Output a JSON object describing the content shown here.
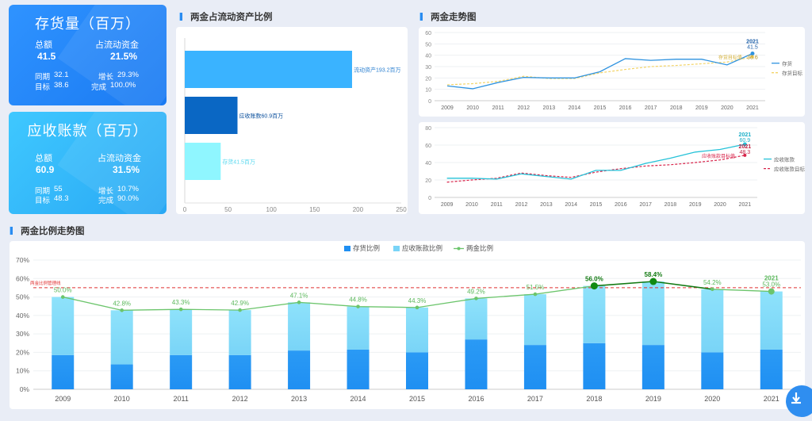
{
  "cards": [
    {
      "title": "存货量（百万）",
      "total_label": "总额",
      "total_value": "41.5",
      "ratio_label": "占流动资金",
      "ratio_value": "21.5%",
      "yoy_label": "同期",
      "yoy_value": "32.1",
      "growth_label": "增长",
      "growth_value": "29.3%",
      "target_label": "目标",
      "target_value": "38.6",
      "done_label": "完成",
      "done_value": "100.0%"
    },
    {
      "title": "应收账款（百万）",
      "total_label": "总额",
      "total_value": "60.9",
      "ratio_label": "占流动资金",
      "ratio_value": "31.5%",
      "yoy_label": "同期",
      "yoy_value": "55",
      "growth_label": "增长",
      "growth_value": "10.7%",
      "target_label": "目标",
      "target_value": "48.3",
      "done_label": "完成",
      "done_value": "90.0%"
    }
  ],
  "sections": {
    "bar_title": "两金占流动资产比例",
    "trend_title": "两金走势图",
    "ratio_title": "两金比例走势图"
  },
  "colors": {
    "accent": "#2a8cf0",
    "hbar1": "#3ab3ff",
    "hbar2": "#0a67c4",
    "hbar3": "#8ff6ff",
    "inventory_line": "#2f93e0",
    "inventory_target": "#f3d467",
    "receivable_line": "#25c2d8",
    "receivable_target": "#d8244a",
    "stack_bottom": "#1f8ff2",
    "stack_top": "#79d4f7",
    "ratio_line": "#6cc56c",
    "ref_line": "#e03030"
  },
  "chart_data": [
    {
      "type": "bar",
      "orientation": "horizontal",
      "categories": [
        "流动资产",
        "应收账款",
        "存货"
      ],
      "values": [
        193.2,
        60.9,
        41.5
      ],
      "data_labels": [
        "流动资产193.2百万",
        "应收账款60.9百万",
        "存货41.5百万"
      ],
      "xlim": [
        0,
        250
      ],
      "xticks": [
        "0",
        "50",
        "100",
        "150",
        "200",
        "250"
      ]
    },
    {
      "type": "line",
      "x": [
        "2009",
        "2010",
        "2011",
        "2012",
        "2013",
        "2014",
        "2015",
        "2016",
        "2017",
        "2018",
        "2019",
        "2020",
        "2021"
      ],
      "ylim": [
        0,
        60
      ],
      "yticks": [
        "0",
        "10",
        "20",
        "30",
        "40",
        "50",
        "60"
      ],
      "series": [
        {
          "name": "存货",
          "values": [
            13,
            10.5,
            16,
            20.5,
            20,
            20,
            25.5,
            37,
            35.5,
            36.5,
            36.5,
            31.5,
            41.5
          ]
        },
        {
          "name": "存货目标",
          "values": [
            14,
            15,
            17,
            21.5,
            19.5,
            19.5,
            24.5,
            27.5,
            30,
            31,
            32.5,
            34,
            38.6
          ]
        }
      ],
      "annotations": [
        {
          "text": "2021",
          "x": "2021",
          "y": 41.5
        },
        {
          "text": "41.5",
          "x": "2021",
          "y": 41.5
        },
        {
          "text": "38.6",
          "x": "2021",
          "y": 38.6
        },
        {
          "text": "存货目标值",
          "x": "2020",
          "y": 38.6
        }
      ],
      "legend": "right"
    },
    {
      "type": "line",
      "x": [
        "2009",
        "2010",
        "2011",
        "2012",
        "2013",
        "2014",
        "2015",
        "2016",
        "2017",
        "2018",
        "2019",
        "2020",
        "2021"
      ],
      "ylim": [
        0,
        80
      ],
      "yticks": [
        "0",
        "20",
        "40",
        "60",
        "80"
      ],
      "series": [
        {
          "name": "应收账款",
          "values": [
            22,
            22,
            21,
            27,
            24,
            21,
            31,
            31,
            39,
            45,
            52,
            55,
            60.9
          ]
        },
        {
          "name": "应收账款目标",
          "values": [
            17.5,
            20,
            22,
            28,
            25,
            23,
            29,
            33,
            36,
            37.5,
            40,
            43,
            48.3
          ]
        }
      ],
      "annotations": [
        {
          "text": "2021",
          "x": "2021",
          "y": 60.9
        },
        {
          "text": "60.9",
          "x": "2021",
          "y": 60.9
        },
        {
          "text": "2021",
          "x": "2021",
          "y": 48.3
        },
        {
          "text": "48.3",
          "x": "2021",
          "y": 48.3
        },
        {
          "text": "应收账款目标值",
          "x": "2020",
          "y": 48.3
        }
      ],
      "legend": "right"
    },
    {
      "type": "bar",
      "stacked": true,
      "categories": [
        "2009",
        "2010",
        "2011",
        "2012",
        "2013",
        "2014",
        "2015",
        "2016",
        "2017",
        "2018",
        "2019",
        "2020",
        "2021"
      ],
      "series": [
        {
          "name": "存货比例",
          "values": [
            18.5,
            13.5,
            18.5,
            18.5,
            21,
            21.5,
            20,
            27,
            24,
            25,
            24,
            20,
            21.5
          ]
        },
        {
          "name": "应收账款比例",
          "values": [
            31.5,
            29.3,
            24.8,
            24.4,
            26.1,
            23.3,
            24.3,
            22.2,
            27.5,
            31,
            34.4,
            34.2,
            31.5
          ]
        },
        {
          "name": "两金比例",
          "type": "line",
          "values": [
            50.0,
            42.8,
            43.3,
            42.9,
            47.1,
            44.8,
            44.3,
            49.2,
            51.5,
            56.0,
            58.4,
            54.2,
            53.0
          ]
        }
      ],
      "data_labels": [
        "50.0%",
        "42.8%",
        "43.3%",
        "42.9%",
        "47.1%",
        "44.8%",
        "44.3%",
        "49.2%",
        "51.5%",
        "56.0%",
        "58.4%",
        "54.2%",
        "53.0%"
      ],
      "ylim": [
        0,
        70
      ],
      "yticks": [
        "0%",
        "10%",
        "20%",
        "30%",
        "40%",
        "50%",
        "60%",
        "70%"
      ],
      "reference_line": {
        "value": 55,
        "label": "两金比例管理线"
      },
      "annotations": [
        {
          "text": "2021",
          "x": "2021",
          "y": 53.0
        }
      ],
      "legend": "top-center"
    }
  ]
}
